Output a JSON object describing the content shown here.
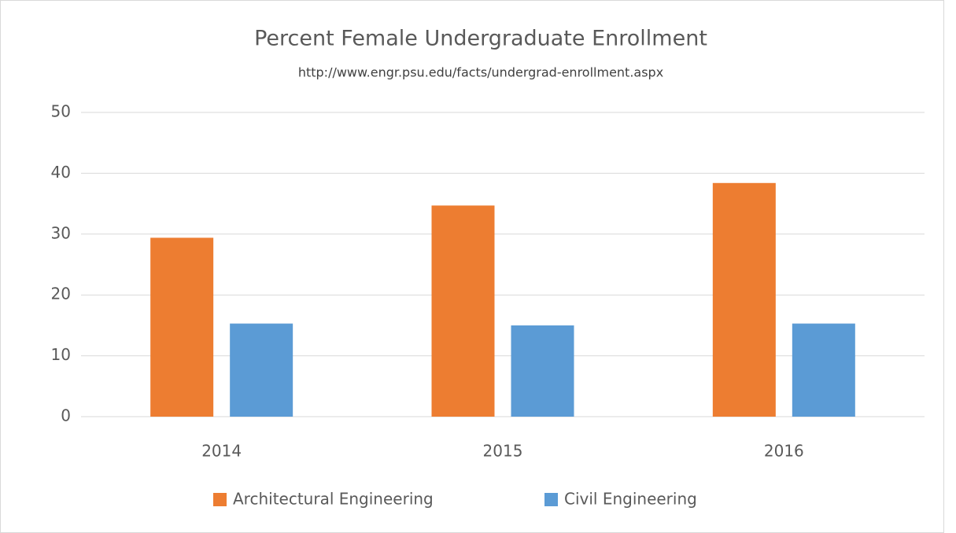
{
  "chart_data": {
    "type": "bar",
    "title": "Percent Female Undergraduate Enrollment",
    "subtitle": "http://www.engr.psu.edu/facts/undergrad-enrollment.aspx",
    "categories": [
      "2014",
      "2015",
      "2016"
    ],
    "series": [
      {
        "name": "Architectural Engineering",
        "color": "#ed7d31",
        "values": [
          29.4,
          34.7,
          38.4
        ]
      },
      {
        "name": "Civil Engineering",
        "color": "#5b9bd5",
        "values": [
          15.3,
          15.0,
          15.3
        ]
      }
    ],
    "ylim": [
      0,
      50
    ],
    "yticks": [
      0,
      10,
      20,
      30,
      40,
      50
    ],
    "grid": true,
    "legend": "bottom"
  }
}
